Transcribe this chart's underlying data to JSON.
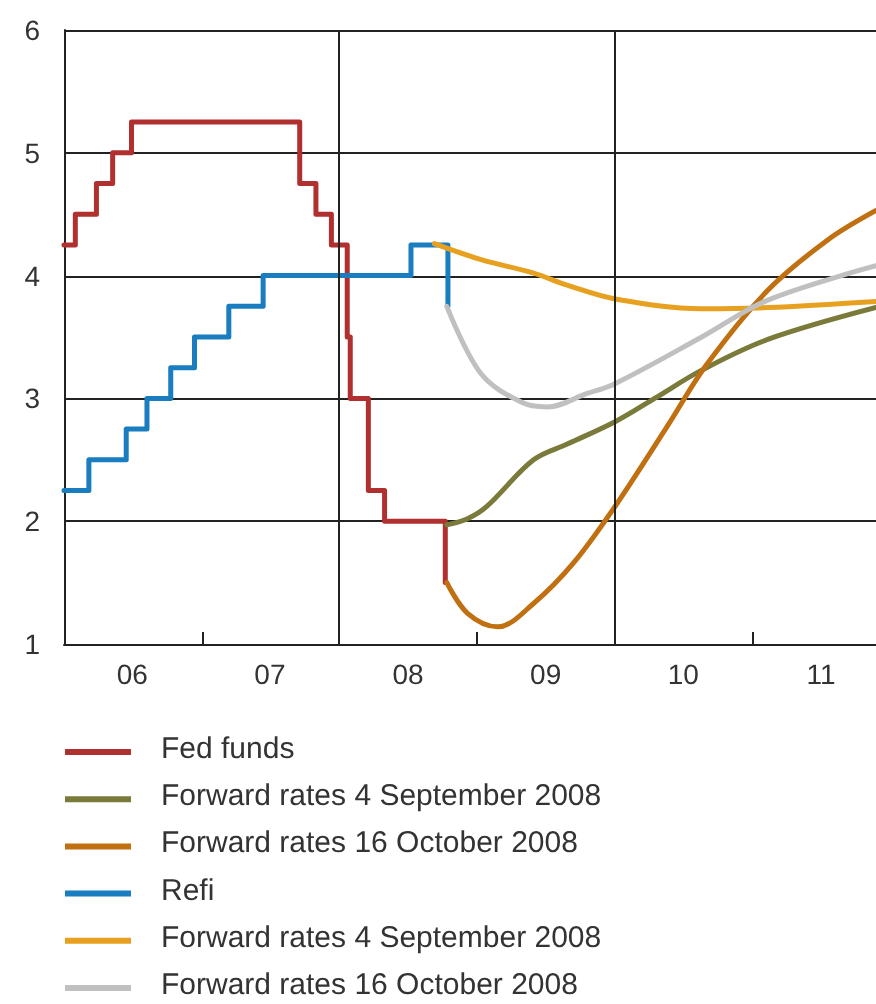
{
  "chart_data": {
    "type": "line",
    "xlim": [
      "2006-01-01",
      "2011-11-24"
    ],
    "ylim": [
      1,
      6
    ],
    "yticks": [
      1,
      2,
      3,
      4,
      5,
      6
    ],
    "xticks": [
      {
        "value": "2006-07-01",
        "label": "06"
      },
      {
        "value": "2007-01-01",
        "label": null
      },
      {
        "value": "2007-07-01",
        "label": "07"
      },
      {
        "value": "2008-07-01",
        "label": "08"
      },
      {
        "value": "2009-01-01",
        "label": null
      },
      {
        "value": "2009-07-01",
        "label": "09"
      },
      {
        "value": "2010-07-01",
        "label": "10"
      },
      {
        "value": "2011-01-01",
        "label": null
      },
      {
        "value": "2011-07-01",
        "label": "11"
      }
    ],
    "grid": "y",
    "legend": "bottom",
    "marker": "none",
    "line_style": "solid",
    "ref_lines": [
      {
        "axis": "x",
        "value": "2008-01-01",
        "color": "#222222"
      },
      {
        "axis": "x",
        "value": "2010-01-01",
        "color": "#222222"
      }
    ],
    "series": [
      {
        "name": "Fed funds",
        "type": "step",
        "color": "#b0302f",
        "x": [
          "2006-01-01",
          "2006-01-31",
          "2006-03-28",
          "2006-05-10",
          "2006-06-29",
          "2007-09-18",
          "2007-10-31",
          "2007-12-11",
          "2008-01-22",
          "2008-01-30",
          "2008-03-18",
          "2008-04-30",
          "2008-10-08"
        ],
        "values": [
          4.25,
          4.5,
          4.75,
          5,
          5.25,
          4.75,
          4.5,
          4.25,
          3.5,
          3,
          2.25,
          2,
          1.5
        ]
      },
      {
        "name": "Forward rates 4 September 2008",
        "color": "#7a7a3a",
        "x": [
          "2008-10-12",
          "2008-12-06",
          "2009-01-26",
          "2009-05-30",
          "2009-08-29",
          "2010-01-01",
          "2010-04-16",
          "2010-08-19",
          "2011-02-10",
          "2011-11-24"
        ],
        "values": [
          1.97,
          2.02,
          2.12,
          2.5,
          2.63,
          2.81,
          3,
          3.23,
          3.48,
          3.74
        ]
      },
      {
        "name": "Forward rates 16 October 2008",
        "color": "#c07010",
        "x": [
          "2008-10-12",
          "2008-12-06",
          "2009-02-24",
          "2009-05-30",
          "2009-09-13",
          "2010-01-01",
          "2010-05-19",
          "2010-09-02",
          "2011-02-10",
          "2011-07-19",
          "2011-11-24"
        ],
        "values": [
          1.5,
          1.25,
          1.14,
          1.33,
          1.66,
          2.12,
          2.77,
          3.28,
          3.88,
          4.29,
          4.53
        ]
      },
      {
        "name": "Refi",
        "type": "step",
        "color": "#1a7dc0",
        "x": [
          "2006-01-01",
          "2006-03-08",
          "2006-06-15",
          "2006-08-09",
          "2006-10-11",
          "2006-12-13",
          "2007-03-14",
          "2007-06-13",
          "2008-07-09",
          "2008-10-15"
        ],
        "values": [
          2.25,
          2.5,
          2.75,
          3,
          3.25,
          3.5,
          3.75,
          4,
          4.25,
          3.75
        ]
      },
      {
        "name": "Forward rates 4 September 2008",
        "color": "#e8a020",
        "x": [
          "2008-09-09",
          "2009-01-11",
          "2009-05-30",
          "2009-08-29",
          "2010-01-01",
          "2010-08-19",
          "2011-02-10",
          "2011-11-24"
        ],
        "values": [
          4.26,
          4.13,
          4.02,
          3.92,
          3.81,
          3.73,
          3.74,
          3.79
        ]
      },
      {
        "name": "Forward rates 16 October 2008",
        "color": "#c0c0c0",
        "x": [
          "2008-10-12",
          "2009-01-11",
          "2009-04-27",
          "2009-07-05",
          "2009-10-19",
          "2010-01-01",
          "2010-08-19",
          "2011-02-10",
          "2011-11-24"
        ],
        "values": [
          3.75,
          3.2,
          2.97,
          2.93,
          3.04,
          3.12,
          3.5,
          3.8,
          4.08
        ]
      }
    ]
  }
}
